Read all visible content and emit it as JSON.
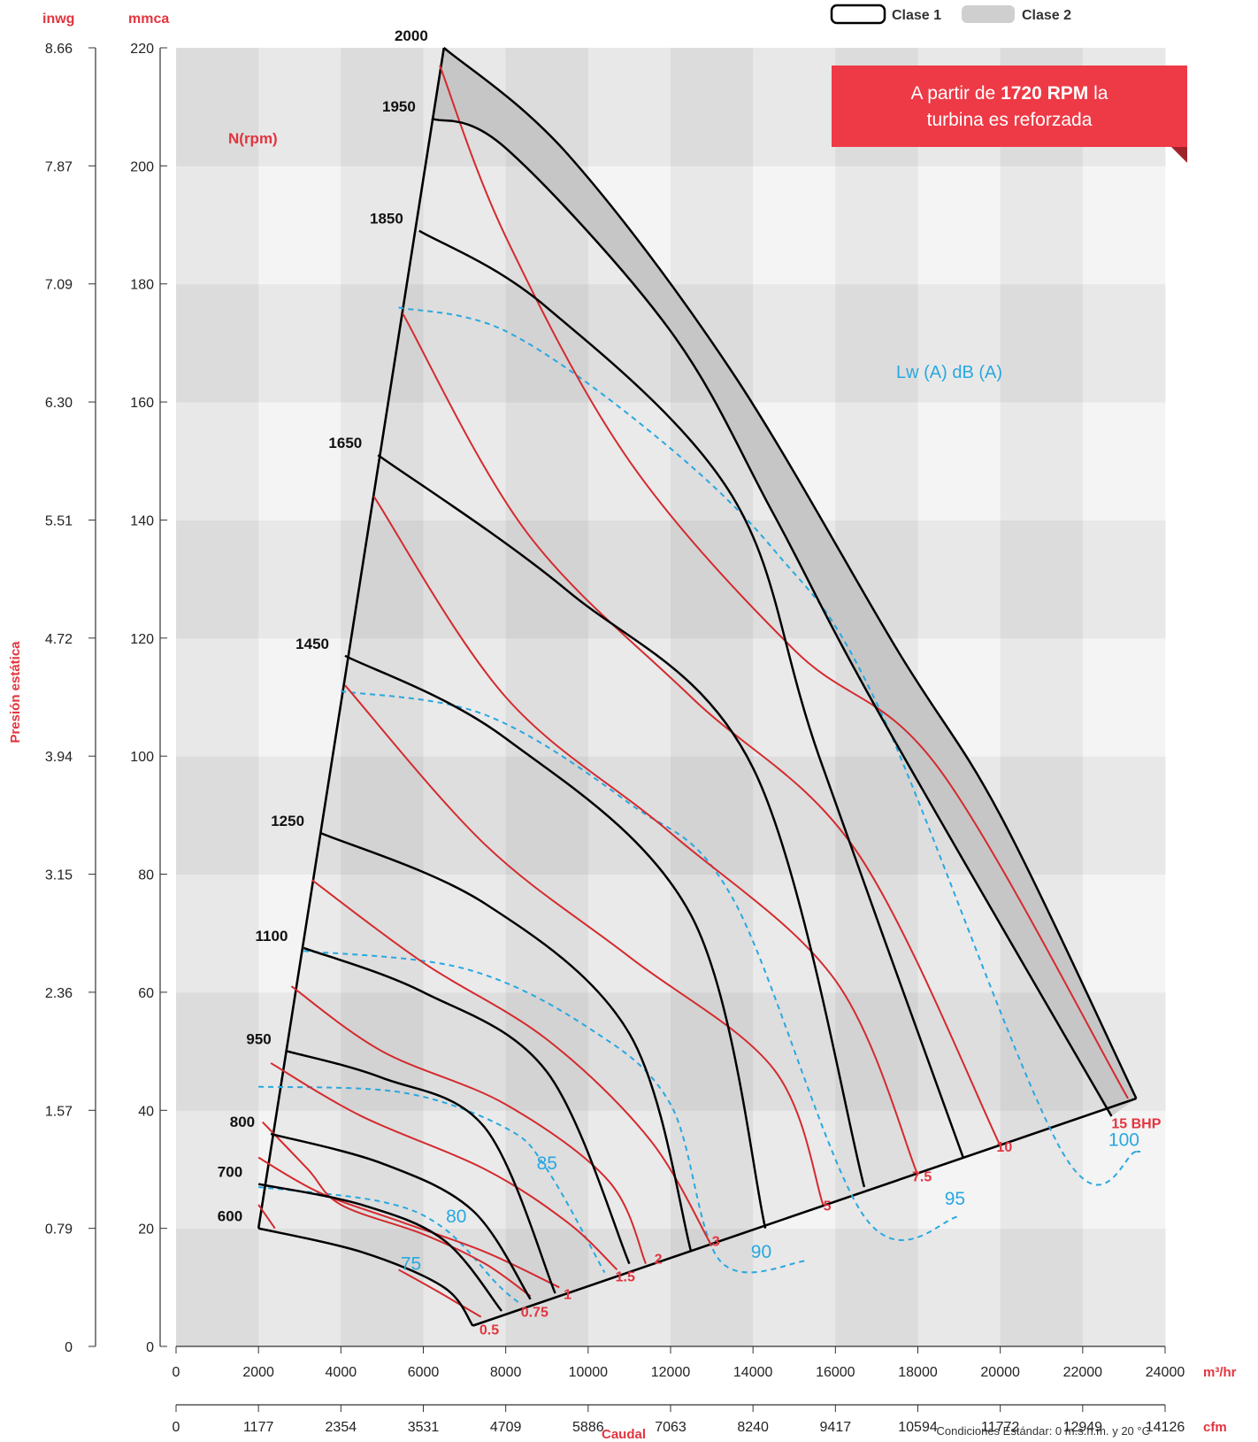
{
  "header": {
    "left_unit": "inwg",
    "right_unit": "mmca",
    "y_axis_title": "Presión estática",
    "x_axis_title": "Caudal",
    "x_unit_m3": "m³/hr",
    "x_unit_cfm": "cfm",
    "footnote": "Condiciones Estándar: 0 m.s.n.m. y 20 °C",
    "rpm_label": "N(rpm)",
    "noise_label": "Lw (A) dB (A)"
  },
  "legend": {
    "clase1": "Clase 1",
    "clase2": "Clase 2"
  },
  "banner": {
    "prefix": "A partir de ",
    "bold": "1720 RPM",
    "suffix": " la",
    "line2": "turbina es reforzada"
  },
  "colors": {
    "rpm_curve": "#000000",
    "power_curve": "#d42a2e",
    "noise_curve": "#29a8e0",
    "label_red": "#e2353f",
    "banner_bg": "#ee3a46",
    "clase2_fill": "#cfcfcf"
  },
  "chart_data": {
    "type": "line",
    "title": "",
    "xlabel": "Caudal",
    "ylabel": "Presión estática",
    "xlim": [
      0,
      24000
    ],
    "ylim": [
      0,
      220
    ],
    "x_ticks_m3hr": [
      "0",
      "2000",
      "4000",
      "6000",
      "8000",
      "10000",
      "12000",
      "14000",
      "16000",
      "18000",
      "20000",
      "22000",
      "24000"
    ],
    "x_ticks_cfm": [
      "0",
      "1177",
      "2354",
      "3531",
      "4709",
      "5886",
      "7063",
      "8240",
      "9417",
      "10594",
      "11772",
      "12949",
      "14126"
    ],
    "y_ticks_mmca": [
      "0",
      "20",
      "40",
      "60",
      "80",
      "100",
      "120",
      "140",
      "160",
      "180",
      "200",
      "220"
    ],
    "y_ticks_inwg": [
      "0",
      "0.79",
      "1.57",
      "2.36",
      "3.15",
      "3.94",
      "4.72",
      "5.51",
      "6.30",
      "7.09",
      "7.87",
      "8.66"
    ],
    "rpm_curves": [
      {
        "name": "600",
        "points": [
          [
            2000,
            20
          ],
          [
            4500,
            16
          ],
          [
            6500,
            10
          ],
          [
            7200,
            3.5
          ]
        ]
      },
      {
        "name": "700",
        "points": [
          [
            2000,
            27.5
          ],
          [
            4500,
            24
          ],
          [
            6500,
            18
          ],
          [
            7900,
            6
          ]
        ]
      },
      {
        "name": "800",
        "points": [
          [
            2300,
            36
          ],
          [
            5000,
            31
          ],
          [
            7200,
            23
          ],
          [
            8600,
            8
          ]
        ]
      },
      {
        "name": "950",
        "points": [
          [
            2700,
            50
          ],
          [
            5000,
            45.5
          ],
          [
            7500,
            37
          ],
          [
            9200,
            9
          ]
        ]
      },
      {
        "name": "1100",
        "points": [
          [
            3100,
            67.5
          ],
          [
            6000,
            60
          ],
          [
            9000,
            46.5
          ],
          [
            11000,
            14
          ]
        ]
      },
      {
        "name": "1250",
        "points": [
          [
            3500,
            87
          ],
          [
            7500,
            75
          ],
          [
            11000,
            53
          ],
          [
            12500,
            16
          ]
        ]
      },
      {
        "name": "1450",
        "points": [
          [
            4100,
            117
          ],
          [
            8000,
            103
          ],
          [
            12500,
            73
          ],
          [
            14300,
            20
          ]
        ]
      },
      {
        "name": "1650",
        "points": [
          [
            4900,
            151
          ],
          [
            9500,
            128
          ],
          [
            14000,
            98
          ],
          [
            16700,
            27
          ]
        ]
      },
      {
        "name": "1850",
        "points": [
          [
            5900,
            189
          ],
          [
            9000,
            176
          ],
          [
            13500,
            144
          ],
          [
            15600,
            100
          ],
          [
            19100,
            32
          ]
        ]
      },
      {
        "name": "1950",
        "points": [
          [
            6200,
            208
          ],
          [
            8000,
            203
          ],
          [
            12000,
            172
          ],
          [
            14500,
            141
          ],
          [
            17000,
            108
          ],
          [
            22700,
            39
          ]
        ]
      },
      {
        "name": "2000",
        "points": [
          [
            6500,
            220
          ],
          [
            9500,
            202
          ],
          [
            13500,
            165
          ],
          [
            17500,
            118
          ],
          [
            20000,
            90
          ],
          [
            23300,
            42
          ]
        ]
      }
    ],
    "power_curves": [
      {
        "name": "0.5",
        "points": [
          [
            5400,
            13
          ],
          [
            6300,
            9.5
          ],
          [
            7400,
            5
          ]
        ]
      },
      {
        "name": "0.75",
        "points": [
          [
            2000,
            24
          ],
          [
            2400,
            20
          ]
        ]
      },
      {
        "name": "0.75b",
        "points": [
          [
            2100,
            38
          ],
          [
            3200,
            30
          ],
          [
            4000,
            24
          ],
          [
            6000,
            19
          ],
          [
            7500,
            14
          ],
          [
            8600,
            8.5
          ]
        ]
      },
      {
        "name": "1",
        "points": [
          [
            2000,
            32
          ],
          [
            3500,
            26
          ],
          [
            5500,
            21
          ],
          [
            7500,
            16
          ],
          [
            9300,
            10
          ]
        ]
      },
      {
        "name": "1.5",
        "points": [
          [
            2300,
            48
          ],
          [
            4500,
            39
          ],
          [
            7500,
            30
          ],
          [
            9500,
            21
          ],
          [
            10700,
            13
          ]
        ]
      },
      {
        "name": "2",
        "points": [
          [
            2800,
            61
          ],
          [
            5000,
            50
          ],
          [
            8000,
            41
          ],
          [
            10500,
            28
          ],
          [
            11400,
            14
          ]
        ]
      },
      {
        "name": "3",
        "points": [
          [
            3300,
            79
          ],
          [
            6000,
            65
          ],
          [
            9000,
            52
          ],
          [
            11500,
            35
          ],
          [
            13000,
            17
          ]
        ]
      },
      {
        "name": "5",
        "points": [
          [
            4100,
            112
          ],
          [
            7500,
            85
          ],
          [
            11000,
            66
          ],
          [
            14500,
            47
          ],
          [
            15700,
            24
          ]
        ]
      },
      {
        "name": "7.5",
        "points": [
          [
            4800,
            144
          ],
          [
            8000,
            110
          ],
          [
            12000,
            87
          ],
          [
            16000,
            62
          ],
          [
            18000,
            29
          ]
        ]
      },
      {
        "name": "10",
        "points": [
          [
            5500,
            175
          ],
          [
            8500,
            138
          ],
          [
            12500,
            110
          ],
          [
            16500,
            84
          ],
          [
            20000,
            34
          ]
        ]
      },
      {
        "name": "15 BHP",
        "points": [
          [
            6400,
            217
          ],
          [
            8000,
            188
          ],
          [
            11000,
            150
          ],
          [
            15000,
            118
          ],
          [
            18500,
            98
          ],
          [
            23100,
            42
          ]
        ]
      }
    ],
    "noise_curves": [
      {
        "name": "75",
        "points": [
          [
            2000,
            27
          ],
          [
            5000,
            24.5
          ],
          [
            6500,
            20
          ],
          [
            7800,
            10.5
          ],
          [
            8300,
            7.5
          ]
        ]
      },
      {
        "name": "80",
        "points": [
          [
            2000,
            44
          ],
          [
            5500,
            43
          ],
          [
            8000,
            37
          ],
          [
            9000,
            30
          ],
          [
            10400,
            12.5
          ]
        ]
      },
      {
        "name": "85",
        "points": [
          [
            3100,
            67
          ],
          [
            7000,
            64
          ],
          [
            10000,
            54
          ],
          [
            12000,
            41
          ],
          [
            13200,
            14.5
          ],
          [
            15300,
            14.5
          ]
        ]
      },
      {
        "name": "90",
        "points": [
          [
            4000,
            111
          ],
          [
            7500,
            107
          ],
          [
            11000,
            92
          ],
          [
            13500,
            76
          ],
          [
            16700,
            22
          ],
          [
            19000,
            22
          ]
        ]
      },
      {
        "name": "95",
        "points": [
          [
            5400,
            176
          ],
          [
            8000,
            172
          ],
          [
            11500,
            155
          ],
          [
            14500,
            135
          ],
          [
            17000,
            109
          ],
          [
            21500,
            33
          ],
          [
            23300,
            33
          ]
        ]
      }
    ],
    "noise_labels": [
      "75",
      "80",
      "85",
      "90",
      "95",
      "100"
    ],
    "power_labels": [
      "0.5",
      "0.75",
      "1",
      "1.5",
      "2",
      "3",
      "5",
      "7.5",
      "10",
      "15 BHP"
    ],
    "rpm_labels": [
      "600",
      "700",
      "800",
      "950",
      "1100",
      "1250",
      "1450",
      "1650",
      "1850",
      "1950",
      "2000"
    ],
    "envelope": {
      "left_edge": [
        [
          2000,
          20
        ],
        [
          6500,
          220
        ]
      ],
      "right_edge": [
        [
          7200,
          3.5
        ],
        [
          23300,
          42
        ]
      ]
    }
  }
}
